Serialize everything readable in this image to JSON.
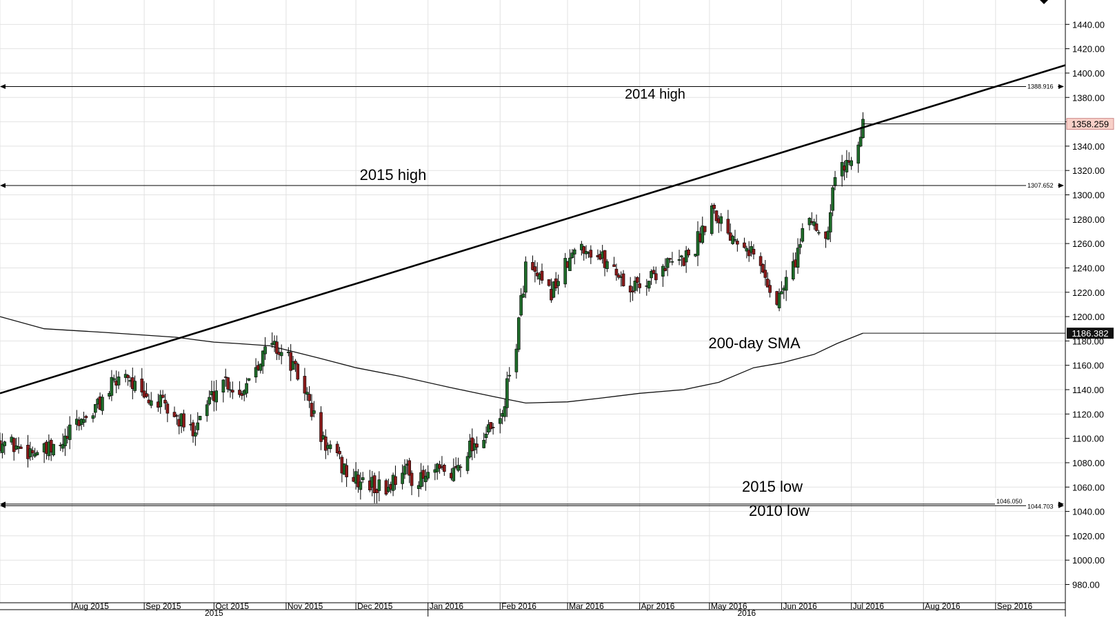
{
  "chart_data": {
    "type": "candlestick",
    "title": "",
    "xlabel": "",
    "ylabel": "",
    "ylim": [
      965,
      1460
    ],
    "y_ticks": [
      "1440.00",
      "1420.00",
      "1400.00",
      "1380.00",
      "1360.00",
      "1340.00",
      "1320.00",
      "1300.00",
      "1280.00",
      "1260.00",
      "1240.00",
      "1220.00",
      "1200.00",
      "1180.00",
      "1160.00",
      "1140.00",
      "1120.00",
      "1100.00",
      "1080.00",
      "1060.00",
      "1040.00",
      "1020.00",
      "1000.00",
      "980.00"
    ],
    "x_months": [
      "Aug 2015",
      "Sep 2015",
      "Oct 2015",
      "Nov 2015",
      "Dec 2015",
      "Jan 2016",
      "Feb 2016",
      "Mar 2016",
      "Apr 2016",
      "May 2016",
      "Jun 2016",
      "Jul 2016",
      "Aug 2016",
      "Sep 2016"
    ],
    "x_years": [
      "2015",
      "2016"
    ],
    "grid": true,
    "current_price": {
      "value": 1358.259,
      "label": "1358.259",
      "color": "#f8d0c8"
    },
    "sma_current": {
      "value": 1186.382,
      "label": "1186.382",
      "color": "#111111"
    },
    "levels": [
      {
        "value": 1388.916,
        "label": "1388.916",
        "annotation": "2014 high"
      },
      {
        "value": 1307.652,
        "label": "1307.652",
        "annotation": "2015 high"
      },
      {
        "value": 1046.05,
        "label": "1046.050",
        "annotation": "2015 low"
      },
      {
        "value": 1044.703,
        "label": "1044.703",
        "annotation": "2010 low"
      }
    ],
    "sma_annotation": "200-day SMA",
    "trendline": {
      "start": [
        "2015-07-01",
        1137
      ],
      "end": [
        "2016-10-01",
        1406.5
      ]
    },
    "sma_200": [
      [
        "2015-07-01",
        1200
      ],
      [
        "2015-07-20",
        1190
      ],
      [
        "2015-08-15",
        1187
      ],
      [
        "2015-09-15",
        1183
      ],
      [
        "2015-10-01",
        1179
      ],
      [
        "2015-10-10",
        1178
      ],
      [
        "2015-10-25",
        1176
      ],
      [
        "2015-11-15",
        1166
      ],
      [
        "2015-12-01",
        1158
      ],
      [
        "2015-12-20",
        1151
      ],
      [
        "2016-01-10",
        1142
      ],
      [
        "2016-01-30",
        1134
      ],
      [
        "2016-02-12",
        1129
      ],
      [
        "2016-03-01",
        1130
      ],
      [
        "2016-03-15",
        1133
      ],
      [
        "2016-04-01",
        1137
      ],
      [
        "2016-04-20",
        1140
      ],
      [
        "2016-05-05",
        1146
      ],
      [
        "2016-05-20",
        1158
      ],
      [
        "2016-06-01",
        1162
      ],
      [
        "2016-06-15",
        1169
      ],
      [
        "2016-06-25",
        1178
      ],
      [
        "2016-07-06",
        1186.382
      ]
    ],
    "ohlc_anchors": [
      [
        "2015-07-01",
        1098
      ],
      [
        "2015-07-10",
        1092
      ],
      [
        "2015-07-20",
        1088
      ],
      [
        "2015-07-27",
        1092
      ],
      [
        "2015-08-03",
        1112
      ],
      [
        "2015-08-10",
        1122
      ],
      [
        "2015-08-17",
        1140
      ],
      [
        "2015-08-24",
        1156
      ],
      [
        "2015-08-31",
        1132
      ],
      [
        "2015-09-07",
        1130
      ],
      [
        "2015-09-14",
        1118
      ],
      [
        "2015-09-21",
        1106
      ],
      [
        "2015-09-28",
        1128
      ],
      [
        "2015-10-05",
        1150
      ],
      [
        "2015-10-12",
        1136
      ],
      [
        "2015-10-19",
        1162
      ],
      [
        "2015-10-26",
        1178
      ],
      [
        "2015-11-02",
        1165
      ],
      [
        "2015-11-09",
        1140
      ],
      [
        "2015-11-16",
        1100
      ],
      [
        "2015-11-23",
        1082
      ],
      [
        "2015-11-30",
        1066
      ],
      [
        "2015-12-07",
        1062
      ],
      [
        "2015-12-14",
        1058
      ],
      [
        "2015-12-21",
        1076
      ],
      [
        "2015-12-28",
        1064
      ],
      [
        "2016-01-04",
        1072
      ],
      [
        "2016-01-11",
        1070
      ],
      [
        "2016-01-18",
        1092
      ],
      [
        "2016-01-25",
        1102
      ],
      [
        "2016-02-01",
        1112
      ],
      [
        "2016-02-08",
        1180
      ],
      [
        "2016-02-12",
        1242
      ],
      [
        "2016-02-22",
        1218
      ],
      [
        "2016-02-29",
        1240
      ],
      [
        "2016-03-07",
        1260
      ],
      [
        "2016-03-14",
        1250
      ],
      [
        "2016-03-21",
        1240
      ],
      [
        "2016-03-28",
        1222
      ],
      [
        "2016-04-04",
        1230
      ],
      [
        "2016-04-11",
        1242
      ],
      [
        "2016-04-18",
        1244
      ],
      [
        "2016-04-25",
        1258
      ],
      [
        "2016-05-02",
        1292
      ],
      [
        "2016-05-09",
        1270
      ],
      [
        "2016-05-16",
        1264
      ],
      [
        "2016-05-23",
        1240
      ],
      [
        "2016-05-30",
        1212
      ],
      [
        "2016-06-06",
        1242
      ],
      [
        "2016-06-13",
        1282
      ],
      [
        "2016-06-20",
        1265
      ],
      [
        "2016-06-24",
        1318
      ],
      [
        "2016-06-28",
        1322
      ],
      [
        "2016-07-06",
        1358
      ]
    ]
  }
}
